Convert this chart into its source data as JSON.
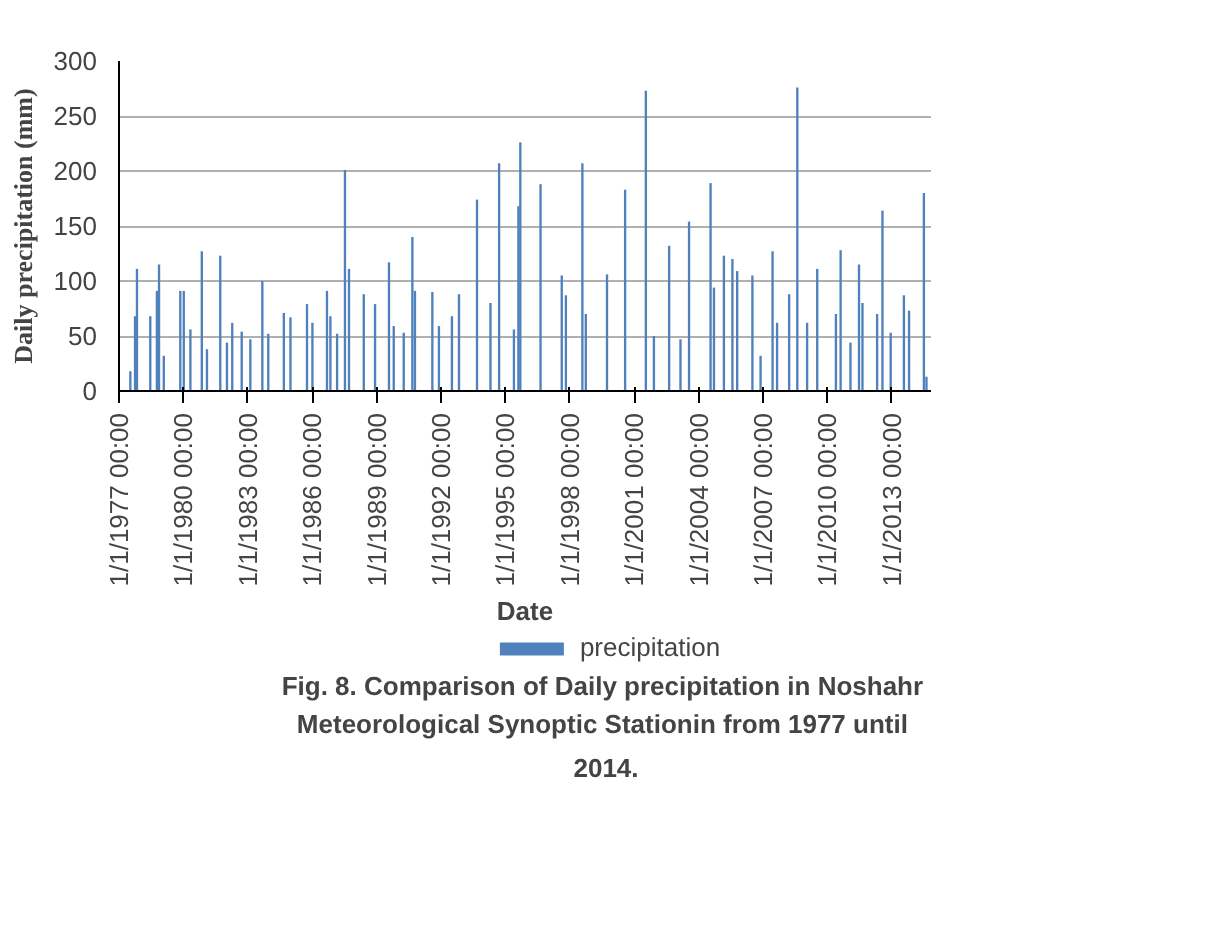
{
  "chart_data": {
    "type": "bar",
    "xlabel": "Date",
    "ylabel": "Daily precipitation (mm)",
    "annotations": [
      "Fig. 8. Comparison of  Daily precipitation in Noshahr Meteorological  Synoptic Stationin from 1977 until 2014."
    ],
    "x": [
      "1977-07-13",
      "1977-10-01",
      "1977-11-03",
      "1978-06-17",
      "1978-10-08",
      "1978-11-13",
      "1979-02-02",
      "1979-11-10",
      "1980-01-08",
      "1980-04-30",
      "1980-11-10",
      "1981-02-06",
      "1981-09-20",
      "1982-01-12",
      "1982-04-12",
      "1982-09-20",
      "1983-02-14",
      "1983-09-06",
      "1983-12-16",
      "1984-09-06",
      "1984-12-28",
      "1985-10-05",
      "1986-01-05",
      "1986-09-10",
      "1986-11-07",
      "1987-03-01",
      "1987-07-13",
      "1987-09-20",
      "1988-05-28",
      "1988-12-06",
      "1989-07-31",
      "1989-10-20",
      "1990-04-08",
      "1990-09-02",
      "1990-10-16",
      "1991-08-08",
      "1991-11-28",
      "1992-07-06",
      "1992-11-03",
      "1993-09-06",
      "1994-04-23",
      "1994-09-17",
      "1995-05-27",
      "1995-08-11",
      "1995-09-13",
      "1996-08-22",
      "1997-08-18",
      "1997-10-27",
      "1998-08-04",
      "1998-10-01",
      "1999-09-27",
      "2000-07-31",
      "2001-07-19",
      "2001-12-03",
      "2002-08-19",
      "2003-02-28",
      "2003-07-24",
      "2004-07-24",
      "2004-09-20",
      "2005-03-08",
      "2005-07-31",
      "2005-10-20",
      "2006-07-06",
      "2006-11-22",
      "2007-06-14",
      "2007-08-30",
      "2008-03-22",
      "2008-08-08",
      "2009-01-22",
      "2009-07-13",
      "2010-05-27",
      "2010-08-15",
      "2011-01-30",
      "2011-06-24",
      "2011-08-22",
      "2012-04-27",
      "2012-07-27",
      "2012-12-14",
      "2013-07-27",
      "2013-10-23",
      "2014-07-02",
      "2014-08-15"
    ],
    "series": [
      {
        "name": "precipitation",
        "color": "#4f81bd",
        "values": [
          18,
          68,
          111,
          68,
          91,
          115,
          32,
          91,
          91,
          56,
          127,
          38,
          123,
          44,
          62,
          54,
          47,
          100,
          52,
          71,
          67,
          79,
          62,
          91,
          68,
          52,
          201,
          111,
          88,
          79,
          117,
          59,
          53,
          140,
          91,
          90,
          59,
          68,
          88,
          174,
          80,
          207,
          56,
          168,
          226,
          188,
          105,
          87,
          207,
          70,
          106,
          183,
          273,
          50,
          132,
          47,
          154,
          189,
          94,
          123,
          120,
          109,
          105,
          32,
          127,
          62,
          88,
          276,
          62,
          111,
          70,
          128,
          44,
          115,
          80,
          70,
          164,
          53,
          87,
          73,
          180,
          13
        ]
      }
    ],
    "xlim": [
      "1977-01-01",
      "2014-10-31"
    ],
    "xticks": [
      {
        "value": "1977-01-01",
        "label": "1/1/1977 00:00"
      },
      {
        "value": "1980-01-01",
        "label": "1/1/1980 00:00"
      },
      {
        "value": "1983-01-01",
        "label": "1/1/1983 00:00"
      },
      {
        "value": "1986-01-01",
        "label": "1/1/1986 00:00"
      },
      {
        "value": "1989-01-01",
        "label": "1/1/1989 00:00"
      },
      {
        "value": "1992-01-01",
        "label": "1/1/1992 00:00"
      },
      {
        "value": "1995-01-01",
        "label": "1/1/1995 00:00"
      },
      {
        "value": "1998-01-01",
        "label": "1/1/1998 00:00"
      },
      {
        "value": "2001-01-01",
        "label": "1/1/2001 00:00"
      },
      {
        "value": "2004-01-01",
        "label": "1/1/2004 00:00"
      },
      {
        "value": "2007-01-01",
        "label": "1/1/2007 00:00"
      },
      {
        "value": "2010-01-01",
        "label": "1/1/2010 00:00"
      },
      {
        "value": "2013-01-01",
        "label": "1/1/2013 00:00"
      }
    ],
    "ylim": [
      0,
      300
    ],
    "yticks": [
      0,
      50,
      100,
      150,
      200,
      250,
      300
    ],
    "grid": "y",
    "legend": "bottom"
  }
}
